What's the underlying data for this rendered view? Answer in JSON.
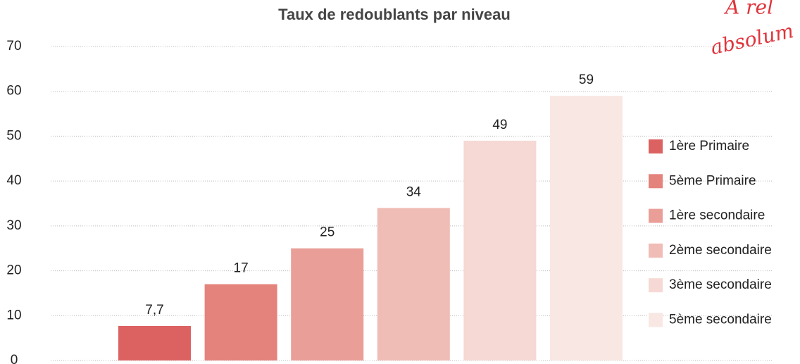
{
  "chart_data": {
    "type": "bar",
    "title": "Taux de redoublants par niveau",
    "series": [
      {
        "name": "1ère Primaire",
        "color": "#dc6262",
        "values": [
          7.7
        ],
        "value_labels": [
          "7,7"
        ]
      },
      {
        "name": "5ème Primaire",
        "color": "#e4827c",
        "values": [
          17
        ]
      },
      {
        "name": "1ère secondaire",
        "color": "#e99f98",
        "values": [
          25
        ]
      },
      {
        "name": "2ème secondaire",
        "color": "#f0bcb6",
        "values": [
          34
        ]
      },
      {
        "name": "3ème secondaire",
        "color": "#f6d9d4",
        "values": [
          49
        ]
      },
      {
        "name": "5ème secondaire",
        "color": "#f9e7e3",
        "values": [
          59
        ]
      }
    ],
    "ylim": [
      0,
      70
    ],
    "yticks": [
      0,
      10,
      20,
      30,
      40,
      50,
      60,
      70
    ],
    "grid": true,
    "legend": "right",
    "annotations": [
      "À rel",
      "absolum"
    ]
  }
}
